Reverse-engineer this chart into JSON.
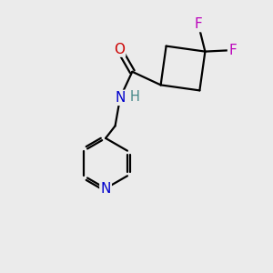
{
  "background_color": "#ebebeb",
  "atom_colors": {
    "C": "#000000",
    "N": "#0000cc",
    "O": "#cc0000",
    "F": "#bb00bb",
    "H": "#448888"
  },
  "bond_color": "#000000",
  "bond_width": 1.6,
  "figsize": [
    3.0,
    3.0
  ],
  "dpi": 100,
  "xlim": [
    0,
    10
  ],
  "ylim": [
    0,
    10
  ]
}
